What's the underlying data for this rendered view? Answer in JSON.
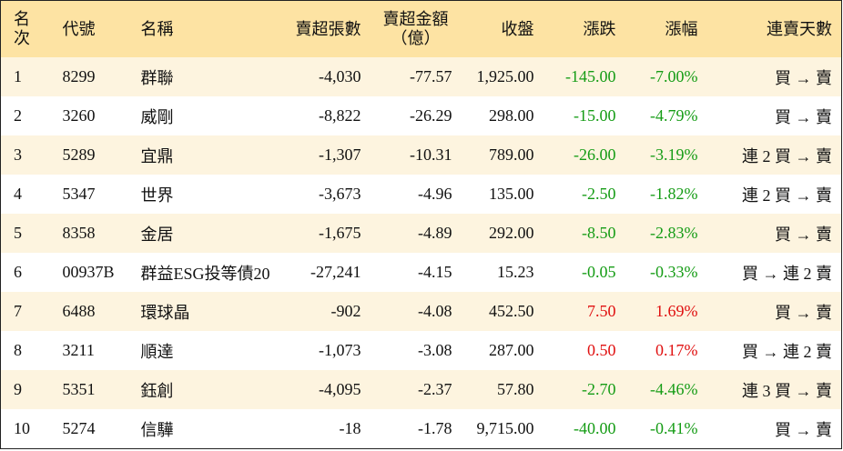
{
  "table": {
    "header": [
      "名次",
      "代號",
      "名稱",
      "賣超張數",
      "賣超金額\n（億）",
      "收盤",
      "漲跌",
      "漲幅",
      "連賣天數"
    ],
    "rows": [
      [
        "1",
        "8299",
        "群聯",
        "-4,030",
        "-77.57",
        "1,925.00",
        "-145.00",
        "-7.00%",
        "買 → 賣"
      ],
      [
        "2",
        "3260",
        "威剛",
        "-8,822",
        "-26.29",
        "298.00",
        "-15.00",
        "-4.79%",
        "買 → 賣"
      ],
      [
        "3",
        "5289",
        "宜鼎",
        "-1,307",
        "-10.31",
        "789.00",
        "-26.00",
        "-3.19%",
        "連 2 買 → 賣"
      ],
      [
        "4",
        "5347",
        "世界",
        "-3,673",
        "-4.96",
        "135.00",
        "-2.50",
        "-1.82%",
        "連 2 買 → 賣"
      ],
      [
        "5",
        "8358",
        "金居",
        "-1,675",
        "-4.89",
        "292.00",
        "-8.50",
        "-2.83%",
        "買 → 賣"
      ],
      [
        "6",
        "00937B",
        "群益ESG投等債20",
        "-27,241",
        "-4.15",
        "15.23",
        "-0.05",
        "-0.33%",
        "買 → 連 2 賣"
      ],
      [
        "7",
        "6488",
        "環球晶",
        "-902",
        "-4.08",
        "452.50",
        "7.50",
        "1.69%",
        "買 → 賣"
      ],
      [
        "8",
        "3211",
        "順達",
        "-1,073",
        "-3.08",
        "287.00",
        "0.50",
        "0.17%",
        "買 → 連 2 賣"
      ],
      [
        "9",
        "5351",
        "鈺創",
        "-4,095",
        "-2.37",
        "57.80",
        "-2.70",
        "-4.46%",
        "連 3 買 → 賣"
      ],
      [
        "10",
        "5274",
        "信驊",
        "-18",
        "-1.78",
        "9,715.00",
        "-40.00",
        "-0.41%",
        "買 → 賣"
      ]
    ]
  }
}
